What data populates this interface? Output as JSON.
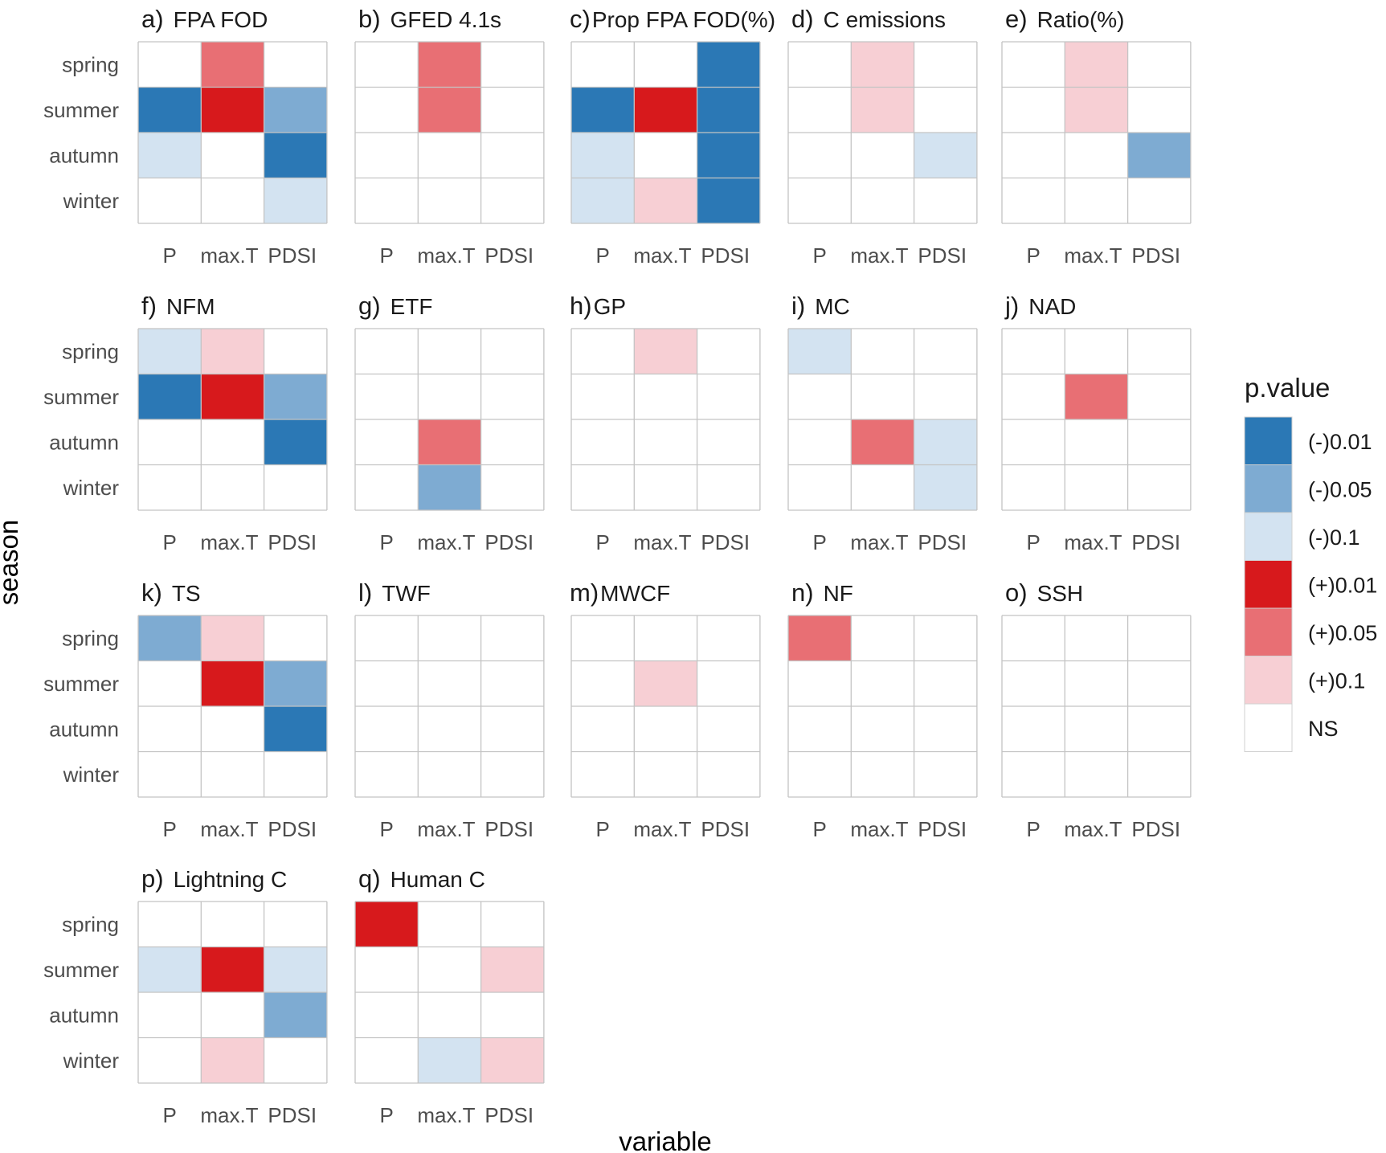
{
  "chart_data": {
    "type": "heatmap",
    "xlabel": "variable",
    "ylabel": "season",
    "x_categories": [
      "P",
      "max.T",
      "PDSI"
    ],
    "y_categories": [
      "spring",
      "summer",
      "autumn",
      "winter"
    ],
    "legend": {
      "title": "p.value",
      "placement": "right",
      "levels": [
        {
          "label": "(-)0.01",
          "color": "#2b78b5"
        },
        {
          "label": "(-)0.05",
          "color": "#7eabd2"
        },
        {
          "label": "(-)0.1",
          "color": "#d3e3f1"
        },
        {
          "label": "(+)0.01",
          "color": "#d7191c"
        },
        {
          "label": "(+)0.05",
          "color": "#e86f74"
        },
        {
          "label": "(+)0.1",
          "color": "#f7cfd4"
        },
        {
          "label": "NS",
          "color": "#ffffff"
        }
      ]
    },
    "panels": [
      {
        "tag": "a)",
        "title": "FPA FOD",
        "cells": {
          "spring": [
            "NS",
            "(+)0.05",
            "NS"
          ],
          "summer": [
            "(-)0.01",
            "(+)0.01",
            "(-)0.05"
          ],
          "autumn": [
            "(-)0.1",
            "NS",
            "(-)0.01"
          ],
          "winter": [
            "NS",
            "NS",
            "(-)0.1"
          ]
        }
      },
      {
        "tag": "b)",
        "title": "GFED 4.1s",
        "cells": {
          "spring": [
            "NS",
            "(+)0.05",
            "NS"
          ],
          "summer": [
            "NS",
            "(+)0.05",
            "NS"
          ],
          "autumn": [
            "NS",
            "NS",
            "NS"
          ],
          "winter": [
            "NS",
            "NS",
            "NS"
          ]
        }
      },
      {
        "tag": "c)",
        "title": "Prop FPA FOD(%)",
        "cells": {
          "spring": [
            "NS",
            "NS",
            "(-)0.01"
          ],
          "summer": [
            "(-)0.01",
            "(+)0.01",
            "(-)0.01"
          ],
          "autumn": [
            "(-)0.1",
            "NS",
            "(-)0.01"
          ],
          "winter": [
            "(-)0.1",
            "(+)0.1",
            "(-)0.01"
          ]
        }
      },
      {
        "tag": "d)",
        "title": "C emissions",
        "cells": {
          "spring": [
            "NS",
            "(+)0.1",
            "NS"
          ],
          "summer": [
            "NS",
            "(+)0.1",
            "NS"
          ],
          "autumn": [
            "NS",
            "NS",
            "(-)0.1"
          ],
          "winter": [
            "NS",
            "NS",
            "NS"
          ]
        }
      },
      {
        "tag": "e)",
        "title": "Ratio(%)",
        "cells": {
          "spring": [
            "NS",
            "(+)0.1",
            "NS"
          ],
          "summer": [
            "NS",
            "(+)0.1",
            "NS"
          ],
          "autumn": [
            "NS",
            "NS",
            "(-)0.05"
          ],
          "winter": [
            "NS",
            "NS",
            "NS"
          ]
        }
      },
      {
        "tag": "f)",
        "title": "NFM",
        "cells": {
          "spring": [
            "(-)0.1",
            "(+)0.1",
            "NS"
          ],
          "summer": [
            "(-)0.01",
            "(+)0.01",
            "(-)0.05"
          ],
          "autumn": [
            "NS",
            "NS",
            "(-)0.01"
          ],
          "winter": [
            "NS",
            "NS",
            "NS"
          ]
        }
      },
      {
        "tag": "g)",
        "title": "ETF",
        "cells": {
          "spring": [
            "NS",
            "NS",
            "NS"
          ],
          "summer": [
            "NS",
            "NS",
            "NS"
          ],
          "autumn": [
            "NS",
            "(+)0.05",
            "NS"
          ],
          "winter": [
            "NS",
            "(-)0.05",
            "NS"
          ]
        }
      },
      {
        "tag": "h)",
        "title": "GP",
        "cells": {
          "spring": [
            "NS",
            "(+)0.1",
            "NS"
          ],
          "summer": [
            "NS",
            "NS",
            "NS"
          ],
          "autumn": [
            "NS",
            "NS",
            "NS"
          ],
          "winter": [
            "NS",
            "NS",
            "NS"
          ]
        }
      },
      {
        "tag": "i)",
        "title": "MC",
        "cells": {
          "spring": [
            "(-)0.1",
            "NS",
            "NS"
          ],
          "summer": [
            "NS",
            "NS",
            "NS"
          ],
          "autumn": [
            "NS",
            "(+)0.05",
            "(-)0.1"
          ],
          "winter": [
            "NS",
            "NS",
            "(-)0.1"
          ]
        }
      },
      {
        "tag": "j)",
        "title": "NAD",
        "cells": {
          "spring": [
            "NS",
            "NS",
            "NS"
          ],
          "summer": [
            "NS",
            "(+)0.05",
            "NS"
          ],
          "autumn": [
            "NS",
            "NS",
            "NS"
          ],
          "winter": [
            "NS",
            "NS",
            "NS"
          ]
        }
      },
      {
        "tag": "k)",
        "title": "TS",
        "cells": {
          "spring": [
            "(-)0.05",
            "(+)0.1",
            "NS"
          ],
          "summer": [
            "NS",
            "(+)0.01",
            "(-)0.05"
          ],
          "autumn": [
            "NS",
            "NS",
            "(-)0.01"
          ],
          "winter": [
            "NS",
            "NS",
            "NS"
          ]
        }
      },
      {
        "tag": "l)",
        "title": "TWF",
        "cells": {
          "spring": [
            "NS",
            "NS",
            "NS"
          ],
          "summer": [
            "NS",
            "NS",
            "NS"
          ],
          "autumn": [
            "NS",
            "NS",
            "NS"
          ],
          "winter": [
            "NS",
            "NS",
            "NS"
          ]
        }
      },
      {
        "tag": "m)",
        "title": "MWCF",
        "cells": {
          "spring": [
            "NS",
            "NS",
            "NS"
          ],
          "summer": [
            "NS",
            "(+)0.1",
            "NS"
          ],
          "autumn": [
            "NS",
            "NS",
            "NS"
          ],
          "winter": [
            "NS",
            "NS",
            "NS"
          ]
        }
      },
      {
        "tag": "n)",
        "title": "NF",
        "cells": {
          "spring": [
            "(+)0.05",
            "NS",
            "NS"
          ],
          "summer": [
            "NS",
            "NS",
            "NS"
          ],
          "autumn": [
            "NS",
            "NS",
            "NS"
          ],
          "winter": [
            "NS",
            "NS",
            "NS"
          ]
        }
      },
      {
        "tag": "o)",
        "title": "SSH",
        "cells": {
          "spring": [
            "NS",
            "NS",
            "NS"
          ],
          "summer": [
            "NS",
            "NS",
            "NS"
          ],
          "autumn": [
            "NS",
            "NS",
            "NS"
          ],
          "winter": [
            "NS",
            "NS",
            "NS"
          ]
        }
      },
      {
        "tag": "p)",
        "title": "Lightning C",
        "cells": {
          "spring": [
            "NS",
            "NS",
            "NS"
          ],
          "summer": [
            "(-)0.1",
            "(+)0.01",
            "(-)0.1"
          ],
          "autumn": [
            "NS",
            "NS",
            "(-)0.05"
          ],
          "winter": [
            "NS",
            "(+)0.1",
            "NS"
          ]
        }
      },
      {
        "tag": "q)",
        "title": "Human C",
        "cells": {
          "spring": [
            "(+)0.01",
            "NS",
            "NS"
          ],
          "summer": [
            "NS",
            "NS",
            "(+)0.1"
          ],
          "autumn": [
            "NS",
            "NS",
            "NS"
          ],
          "winter": [
            "NS",
            "(-)0.1",
            "(+)0.1"
          ]
        }
      }
    ]
  }
}
